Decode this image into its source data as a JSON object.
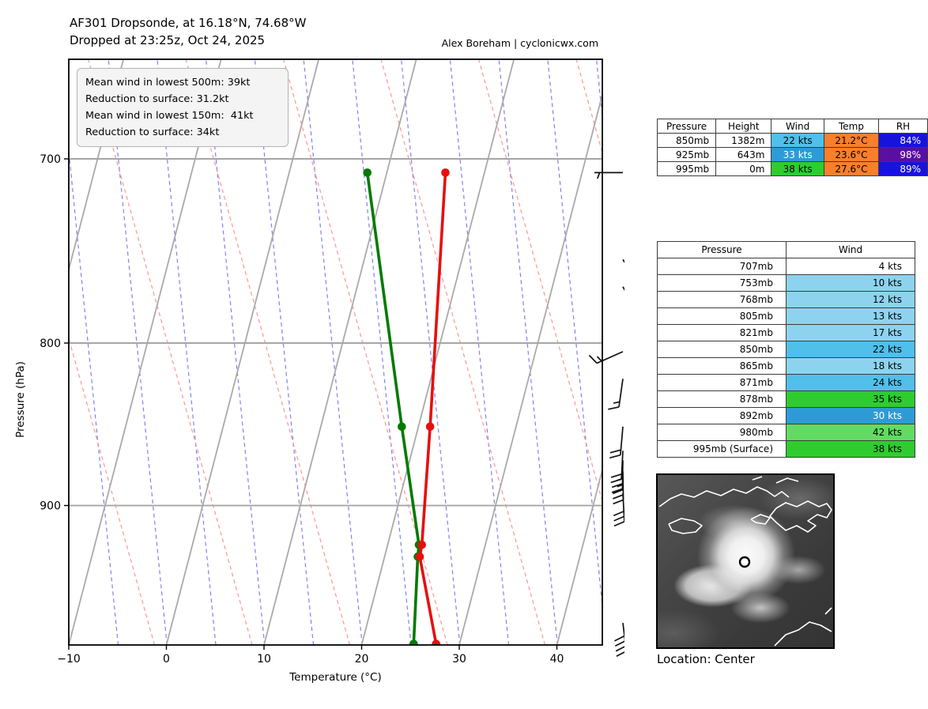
{
  "title": {
    "line1": "AF301 Dropsonde, at 16.18°N, 74.68°W",
    "line2": "Dropped at 23:25z, Oct 24, 2025",
    "credit": "Alex Boreham | cyclonicwx.com"
  },
  "info_box": {
    "lines": [
      "Mean wind in lowest 500m: 39kt",
      "Reduction to surface: 31.2kt",
      "Mean wind in lowest 150m:  41kt",
      "Reduction to surface: 34kt"
    ]
  },
  "axes": {
    "x_label": "Temperature (°C)",
    "y_label": "Pressure (hPa)",
    "x_ticks": [
      {
        "value": -10,
        "label": "−10"
      },
      {
        "value": 0,
        "label": "0"
      },
      {
        "value": 10,
        "label": "10"
      },
      {
        "value": 20,
        "label": "20"
      },
      {
        "value": 30,
        "label": "30"
      },
      {
        "value": 40,
        "label": "40"
      }
    ],
    "y_ticks": [
      {
        "value": 700,
        "label": "700"
      },
      {
        "value": 800,
        "label": "800"
      },
      {
        "value": 900,
        "label": "900"
      }
    ]
  },
  "colors": {
    "temp_trace": "#e60f0f",
    "dewpoint_trace": "#007a00",
    "isotherm_gray": "#aaaaaa",
    "gridline_gray": "#a6a6a6",
    "mixing_blue": "#8181ee",
    "adiabat_red": "#ff9494",
    "barb_black": "#111111",
    "wind_light_blue": "#8dd3f0",
    "wind_mid_blue": "#4fc0ea",
    "wind_blue": "#2e9bd6",
    "wind_green": "#2fcc2f",
    "wind_light_green": "#63db63",
    "temp_cell_orange": "#f97f2c",
    "rh_blue": "#1813dc",
    "rh_purple": "#5a0fa0"
  },
  "summary_table": {
    "headers": [
      "Pressure",
      "Height",
      "Wind",
      "Temp",
      "RH"
    ],
    "rows": [
      {
        "pressure": "850mb",
        "height": "1382m",
        "wind": "22 kts",
        "wind_color": "wind_mid_blue",
        "wind_light": false,
        "temp": "21.2°C",
        "temp_color": "temp_cell_orange",
        "rh": "84%",
        "rh_color": "rh_blue",
        "rh_light": true
      },
      {
        "pressure": "925mb",
        "height": "643m",
        "wind": "33 kts",
        "wind_color": "wind_blue",
        "wind_light": true,
        "temp": "23.6°C",
        "temp_color": "temp_cell_orange",
        "rh": "98%",
        "rh_color": "rh_purple",
        "rh_light": true
      },
      {
        "pressure": "995mb",
        "height": "0m",
        "wind": "38 kts",
        "wind_color": "wind_green",
        "wind_light": false,
        "temp": "27.6°C",
        "temp_color": "temp_cell_orange",
        "rh": "89%",
        "rh_color": "rh_blue",
        "rh_light": true
      }
    ]
  },
  "wind_table": {
    "headers": [
      "Pressure",
      "Wind"
    ],
    "rows": [
      {
        "pressure": "707mb",
        "wind": "4 kts",
        "color": "none",
        "light": false
      },
      {
        "pressure": "753mb",
        "wind": "10 kts",
        "color": "wind_light_blue",
        "light": false
      },
      {
        "pressure": "768mb",
        "wind": "12 kts",
        "color": "wind_light_blue",
        "light": false
      },
      {
        "pressure": "805mb",
        "wind": "13 kts",
        "color": "wind_light_blue",
        "light": false
      },
      {
        "pressure": "821mb",
        "wind": "17 kts",
        "color": "wind_light_blue",
        "light": false
      },
      {
        "pressure": "850mb",
        "wind": "22 kts",
        "color": "wind_mid_blue",
        "light": false
      },
      {
        "pressure": "865mb",
        "wind": "18 kts",
        "color": "wind_light_blue",
        "light": false
      },
      {
        "pressure": "871mb",
        "wind": "24 kts",
        "color": "wind_mid_blue",
        "light": false
      },
      {
        "pressure": "878mb",
        "wind": "35 kts",
        "color": "wind_green",
        "light": false
      },
      {
        "pressure": "892mb",
        "wind": "30 kts",
        "color": "wind_blue",
        "light": true
      },
      {
        "pressure": "980mb",
        "wind": "42 kts",
        "color": "wind_light_green",
        "light": false
      },
      {
        "pressure": "995mb (Surface)",
        "wind": "38 kts",
        "color": "wind_green",
        "light": false
      }
    ]
  },
  "satellite": {
    "caption": "Location: Center"
  },
  "chart_data": {
    "type": "line",
    "title": "AF301 Dropsonde skew-T sounding",
    "xlabel": "Temperature (°C)",
    "ylabel": "Pressure (hPa)",
    "x_range": [
      -10,
      44.6
    ],
    "y_range_mb": [
      651,
      996
    ],
    "y_scale": "log-pressure",
    "grid": "skewed isotherms every 10°C, red dashed adiabats, blue dashed moisture lines, horizontal lines at 700/800/900 hPa",
    "series": [
      {
        "name": "temperature",
        "color": "#e60f0f",
        "points": [
          {
            "pressure_mb": 707,
            "value_c": 16.0
          },
          {
            "pressure_mb": 850,
            "value_c": 21.2
          },
          {
            "pressure_mb": 926,
            "value_c": 23.5
          },
          {
            "pressure_mb": 934,
            "value_c": 23.6
          },
          {
            "pressure_mb": 995,
            "value_c": 27.6
          }
        ]
      },
      {
        "name": "dewpoint",
        "color": "#007a00",
        "points": [
          {
            "pressure_mb": 707,
            "value_c": 8.0
          },
          {
            "pressure_mb": 850,
            "value_c": 18.3
          },
          {
            "pressure_mb": 926,
            "value_c": 23.2
          },
          {
            "pressure_mb": 934,
            "value_c": 23.4
          },
          {
            "pressure_mb": 995,
            "value_c": 25.3
          }
        ]
      }
    ],
    "wind_profile": [
      {
        "pressure_mb": 707,
        "knots": 4
      },
      {
        "pressure_mb": 753,
        "knots": 10
      },
      {
        "pressure_mb": 768,
        "knots": 12
      },
      {
        "pressure_mb": 805,
        "knots": 13
      },
      {
        "pressure_mb": 821,
        "knots": 17
      },
      {
        "pressure_mb": 850,
        "knots": 22
      },
      {
        "pressure_mb": 865,
        "knots": 18
      },
      {
        "pressure_mb": 871,
        "knots": 24
      },
      {
        "pressure_mb": 878,
        "knots": 35
      },
      {
        "pressure_mb": 892,
        "knots": 30
      },
      {
        "pressure_mb": 980,
        "knots": 42
      },
      {
        "pressure_mb": 995,
        "knots": 38
      }
    ]
  }
}
